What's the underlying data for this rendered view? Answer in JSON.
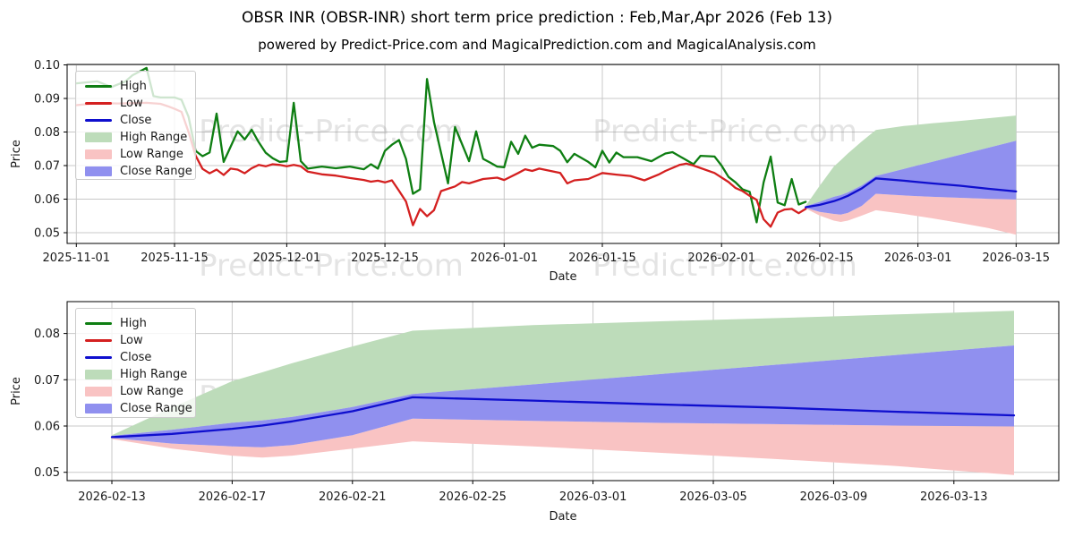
{
  "title": "OBSR INR (OBSR-INR) short term price prediction : Feb,Mar,Apr 2026 (Feb 13)",
  "subtitle": "powered by Predict-Price.com and MagicalPrediction.com and MagicalAnalysis.com",
  "watermark": "Predict-Price.com",
  "colors": {
    "high": "#0e7e12",
    "low": "#d42020",
    "close": "#0f0fce",
    "high_range": "#bddcba",
    "low_range": "#f9c3c3",
    "close_range": "#9090ef",
    "grid": "#c8c8c8",
    "spine": "#000000",
    "tick_text": "#1a1a1a",
    "watermark_gray": "#888888"
  },
  "legend": {
    "items": [
      {
        "label": "High",
        "swatch": "line",
        "color_key": "high"
      },
      {
        "label": "Low",
        "swatch": "line",
        "color_key": "low"
      },
      {
        "label": "Close",
        "swatch": "line",
        "color_key": "close"
      },
      {
        "label": "High Range",
        "swatch": "patch",
        "color_key": "high_range"
      },
      {
        "label": "Low Range",
        "swatch": "patch",
        "color_key": "low_range"
      },
      {
        "label": "Close Range",
        "swatch": "patch",
        "color_key": "close_range"
      }
    ]
  },
  "chart_data": [
    {
      "id": "price-history-with-forecast",
      "type": "line",
      "xlabel": "Date",
      "ylabel": "Price",
      "grid": true,
      "legend_position": "upper left",
      "x_unit": "days since 2025-11-01",
      "xlim_days": [
        -1.3,
        140.1
      ],
      "ylim": [
        0.0468,
        0.1
      ],
      "y_ticks": [
        0.05,
        0.06,
        0.07,
        0.08,
        0.09,
        0.1
      ],
      "x_ticks": {
        "days": [
          0,
          14,
          30,
          44,
          61,
          75,
          92,
          106,
          120,
          134
        ],
        "labels": [
          "2025-11-01",
          "2025-11-15",
          "2025-12-01",
          "2025-12-15",
          "2026-01-01",
          "2026-01-15",
          "2026-02-01",
          "2026-02-15",
          "2026-03-01",
          "2026-03-15"
        ]
      },
      "series": [
        {
          "name": "High",
          "color_key": "high",
          "days_offset": 0,
          "days": [
            0,
            1,
            3,
            5,
            7,
            8,
            10,
            11,
            12,
            14,
            15,
            16,
            17,
            18,
            19,
            20,
            21,
            23,
            24,
            25,
            26,
            27,
            28,
            29,
            30,
            31,
            32,
            33,
            35,
            37,
            39,
            41,
            42,
            43,
            44,
            45,
            46,
            47,
            48,
            49,
            50,
            51,
            53,
            54,
            56,
            57,
            58,
            59,
            60,
            61,
            62,
            63,
            64,
            65,
            66,
            68,
            69,
            70,
            71,
            73,
            74,
            75,
            76,
            77,
            78,
            80,
            82,
            83,
            84,
            85,
            88,
            89,
            91,
            92,
            93,
            94,
            95,
            96,
            97,
            98,
            99,
            100,
            101,
            102,
            103,
            104
          ],
          "values": [
            0.0945,
            0.0947,
            0.0951,
            0.0934,
            0.0951,
            0.0969,
            0.0991,
            0.0907,
            0.0903,
            0.0903,
            0.0896,
            0.0845,
            0.0744,
            0.0728,
            0.0739,
            0.0855,
            0.0711,
            0.0802,
            0.0778,
            0.0807,
            0.077,
            0.0738,
            0.0722,
            0.0711,
            0.0713,
            0.0887,
            0.0713,
            0.0691,
            0.0697,
            0.0692,
            0.0697,
            0.0689,
            0.0704,
            0.0691,
            0.0744,
            0.0762,
            0.0776,
            0.072,
            0.0616,
            0.0629,
            0.0958,
            0.083,
            0.0647,
            0.0815,
            0.0713,
            0.0802,
            0.072,
            0.0709,
            0.0697,
            0.0695,
            0.0771,
            0.0735,
            0.0789,
            0.0753,
            0.0762,
            0.0758,
            0.0744,
            0.071,
            0.0735,
            0.0711,
            0.0695,
            0.0744,
            0.0709,
            0.0739,
            0.0725,
            0.0725,
            0.0713,
            0.0725,
            0.0736,
            0.074,
            0.0704,
            0.0729,
            0.0727,
            0.07,
            0.0666,
            0.065,
            0.0629,
            0.0622,
            0.0531,
            0.065,
            0.0727,
            0.059,
            0.0582,
            0.066,
            0.0584,
            0.0592
          ]
        },
        {
          "name": "Low",
          "color_key": "low",
          "days_offset": 0,
          "days": [
            0,
            2,
            4,
            6,
            8,
            10,
            12,
            13,
            14,
            15,
            16,
            17,
            18,
            19,
            20,
            21,
            22,
            23,
            24,
            25,
            26,
            27,
            28,
            29,
            30,
            31,
            32,
            33,
            35,
            37,
            39,
            41,
            42,
            43,
            44,
            45,
            46,
            47,
            48,
            49,
            50,
            51,
            52,
            54,
            55,
            56,
            58,
            60,
            61,
            63,
            64,
            65,
            66,
            69,
            70,
            71,
            73,
            75,
            77,
            79,
            81,
            83,
            84,
            86,
            87,
            88,
            91,
            93,
            94,
            95,
            96,
            97,
            98,
            99,
            100,
            101,
            102,
            103,
            104
          ],
          "values": [
            0.088,
            0.0884,
            0.0886,
            0.0885,
            0.0886,
            0.0887,
            0.0884,
            0.0877,
            0.0869,
            0.086,
            0.08,
            0.073,
            0.069,
            0.0677,
            0.0688,
            0.0672,
            0.0691,
            0.0688,
            0.0677,
            0.0692,
            0.0702,
            0.0698,
            0.0704,
            0.0702,
            0.0698,
            0.0702,
            0.0698,
            0.0682,
            0.0674,
            0.067,
            0.0663,
            0.0657,
            0.0652,
            0.0655,
            0.065,
            0.0656,
            0.0625,
            0.0593,
            0.0522,
            0.0571,
            0.0549,
            0.0567,
            0.0624,
            0.0638,
            0.0651,
            0.0647,
            0.066,
            0.0664,
            0.0657,
            0.0678,
            0.0689,
            0.0684,
            0.0691,
            0.0678,
            0.0647,
            0.0656,
            0.066,
            0.0678,
            0.0673,
            0.0669,
            0.0656,
            0.0673,
            0.0684,
            0.0702,
            0.0706,
            0.07,
            0.0678,
            0.0651,
            0.0633,
            0.0624,
            0.061,
            0.0598,
            0.054,
            0.0518,
            0.056,
            0.0569,
            0.0571,
            0.0558,
            0.0571
          ]
        },
        {
          "name": "Close",
          "color_key": "close",
          "days_offset": 104,
          "days": [
            0,
            2,
            4,
            5,
            6,
            8,
            10,
            14,
            18,
            22,
            26,
            30
          ],
          "values": [
            0.0576,
            0.0583,
            0.0594,
            0.0601,
            0.061,
            0.0632,
            0.0662,
            0.0655,
            0.0647,
            0.064,
            0.0631,
            0.0623
          ]
        }
      ],
      "bands": [
        {
          "name": "High Range",
          "color_key": "high_range",
          "days_offset": 104,
          "days": [
            0,
            2,
            4,
            5,
            6,
            8,
            10,
            14,
            18,
            22,
            26,
            30
          ],
          "upper": [
            0.058,
            0.064,
            0.0697,
            0.0716,
            0.0736,
            0.0772,
            0.0806,
            0.0818,
            0.0826,
            0.0833,
            0.0841,
            0.0849
          ],
          "lower": [
            0.0579,
            0.0592,
            0.0607,
            0.0612,
            0.062,
            0.0641,
            0.0669,
            0.069,
            0.0711,
            0.0732,
            0.0753,
            0.0774
          ]
        },
        {
          "name": "Low Range",
          "color_key": "low_range",
          "days_offset": 104,
          "days": [
            0,
            2,
            4,
            5,
            6,
            8,
            10,
            14,
            18,
            22,
            26,
            30
          ],
          "upper": [
            0.0574,
            0.0562,
            0.0556,
            0.0554,
            0.0559,
            0.058,
            0.0616,
            0.0611,
            0.0607,
            0.0604,
            0.0601,
            0.0599
          ],
          "lower": [
            0.0572,
            0.0551,
            0.0536,
            0.0532,
            0.0536,
            0.0551,
            0.0567,
            0.0556,
            0.0543,
            0.0529,
            0.0514,
            0.0494
          ]
        },
        {
          "name": "Close Range",
          "color_key": "close_range",
          "days_offset": 104,
          "days": [
            0,
            2,
            4,
            5,
            6,
            8,
            10,
            14,
            18,
            22,
            26,
            30
          ],
          "upper": [
            0.0579,
            0.0592,
            0.0607,
            0.0612,
            0.062,
            0.0641,
            0.0669,
            0.069,
            0.0711,
            0.0732,
            0.0753,
            0.0774
          ],
          "lower": [
            0.0574,
            0.0562,
            0.0556,
            0.0554,
            0.0559,
            0.058,
            0.0616,
            0.0611,
            0.0607,
            0.0604,
            0.0601,
            0.0599
          ]
        }
      ]
    },
    {
      "id": "forecast-detail",
      "type": "line",
      "xlabel": "Date",
      "ylabel": "Price",
      "grid": true,
      "legend_position": "upper left",
      "x_unit": "days since 2026-02-13",
      "xlim_days": [
        -1.46,
        31.5
      ],
      "ylim": [
        0.0482,
        0.0869
      ],
      "y_ticks": [
        0.05,
        0.06,
        0.07,
        0.08
      ],
      "x_ticks": {
        "days": [
          0,
          4,
          8,
          12,
          16,
          20,
          24,
          28
        ],
        "labels": [
          "2026-02-13",
          "2026-02-17",
          "2026-02-21",
          "2026-02-25",
          "2026-03-01",
          "2026-03-05",
          "2026-03-09",
          "2026-03-13"
        ]
      },
      "series": [
        {
          "name": "Close",
          "color_key": "close",
          "days_offset": 0,
          "days": [
            0,
            2,
            4,
            5,
            6,
            8,
            10,
            14,
            18,
            22,
            26,
            30
          ],
          "values": [
            0.0576,
            0.0583,
            0.0594,
            0.0601,
            0.061,
            0.0632,
            0.0662,
            0.0655,
            0.0647,
            0.064,
            0.0631,
            0.0623
          ]
        }
      ],
      "bands": [
        {
          "name": "High Range",
          "color_key": "high_range",
          "days_offset": 0,
          "days": [
            0,
            2,
            4,
            5,
            6,
            8,
            10,
            14,
            18,
            22,
            26,
            30
          ],
          "upper": [
            0.058,
            0.064,
            0.0697,
            0.0716,
            0.0736,
            0.0772,
            0.0806,
            0.0818,
            0.0826,
            0.0833,
            0.0841,
            0.0849
          ],
          "lower": [
            0.0579,
            0.0592,
            0.0607,
            0.0612,
            0.062,
            0.0641,
            0.0669,
            0.069,
            0.0711,
            0.0732,
            0.0753,
            0.0774
          ]
        },
        {
          "name": "Low Range",
          "color_key": "low_range",
          "days_offset": 0,
          "days": [
            0,
            2,
            4,
            5,
            6,
            8,
            10,
            14,
            18,
            22,
            26,
            30
          ],
          "upper": [
            0.0574,
            0.0562,
            0.0556,
            0.0554,
            0.0559,
            0.058,
            0.0616,
            0.0611,
            0.0607,
            0.0604,
            0.0601,
            0.0599
          ],
          "lower": [
            0.0572,
            0.0551,
            0.0536,
            0.0532,
            0.0536,
            0.0551,
            0.0567,
            0.0556,
            0.0543,
            0.0529,
            0.0514,
            0.0494
          ]
        },
        {
          "name": "Close Range",
          "color_key": "close_range",
          "days_offset": 0,
          "days": [
            0,
            2,
            4,
            5,
            6,
            8,
            10,
            14,
            18,
            22,
            26,
            30
          ],
          "upper": [
            0.0579,
            0.0592,
            0.0607,
            0.0612,
            0.062,
            0.0641,
            0.0669,
            0.069,
            0.0711,
            0.0732,
            0.0753,
            0.0774
          ],
          "lower": [
            0.0574,
            0.0562,
            0.0556,
            0.0554,
            0.0559,
            0.058,
            0.0616,
            0.0611,
            0.0607,
            0.0604,
            0.0601,
            0.0599
          ]
        }
      ]
    }
  ]
}
